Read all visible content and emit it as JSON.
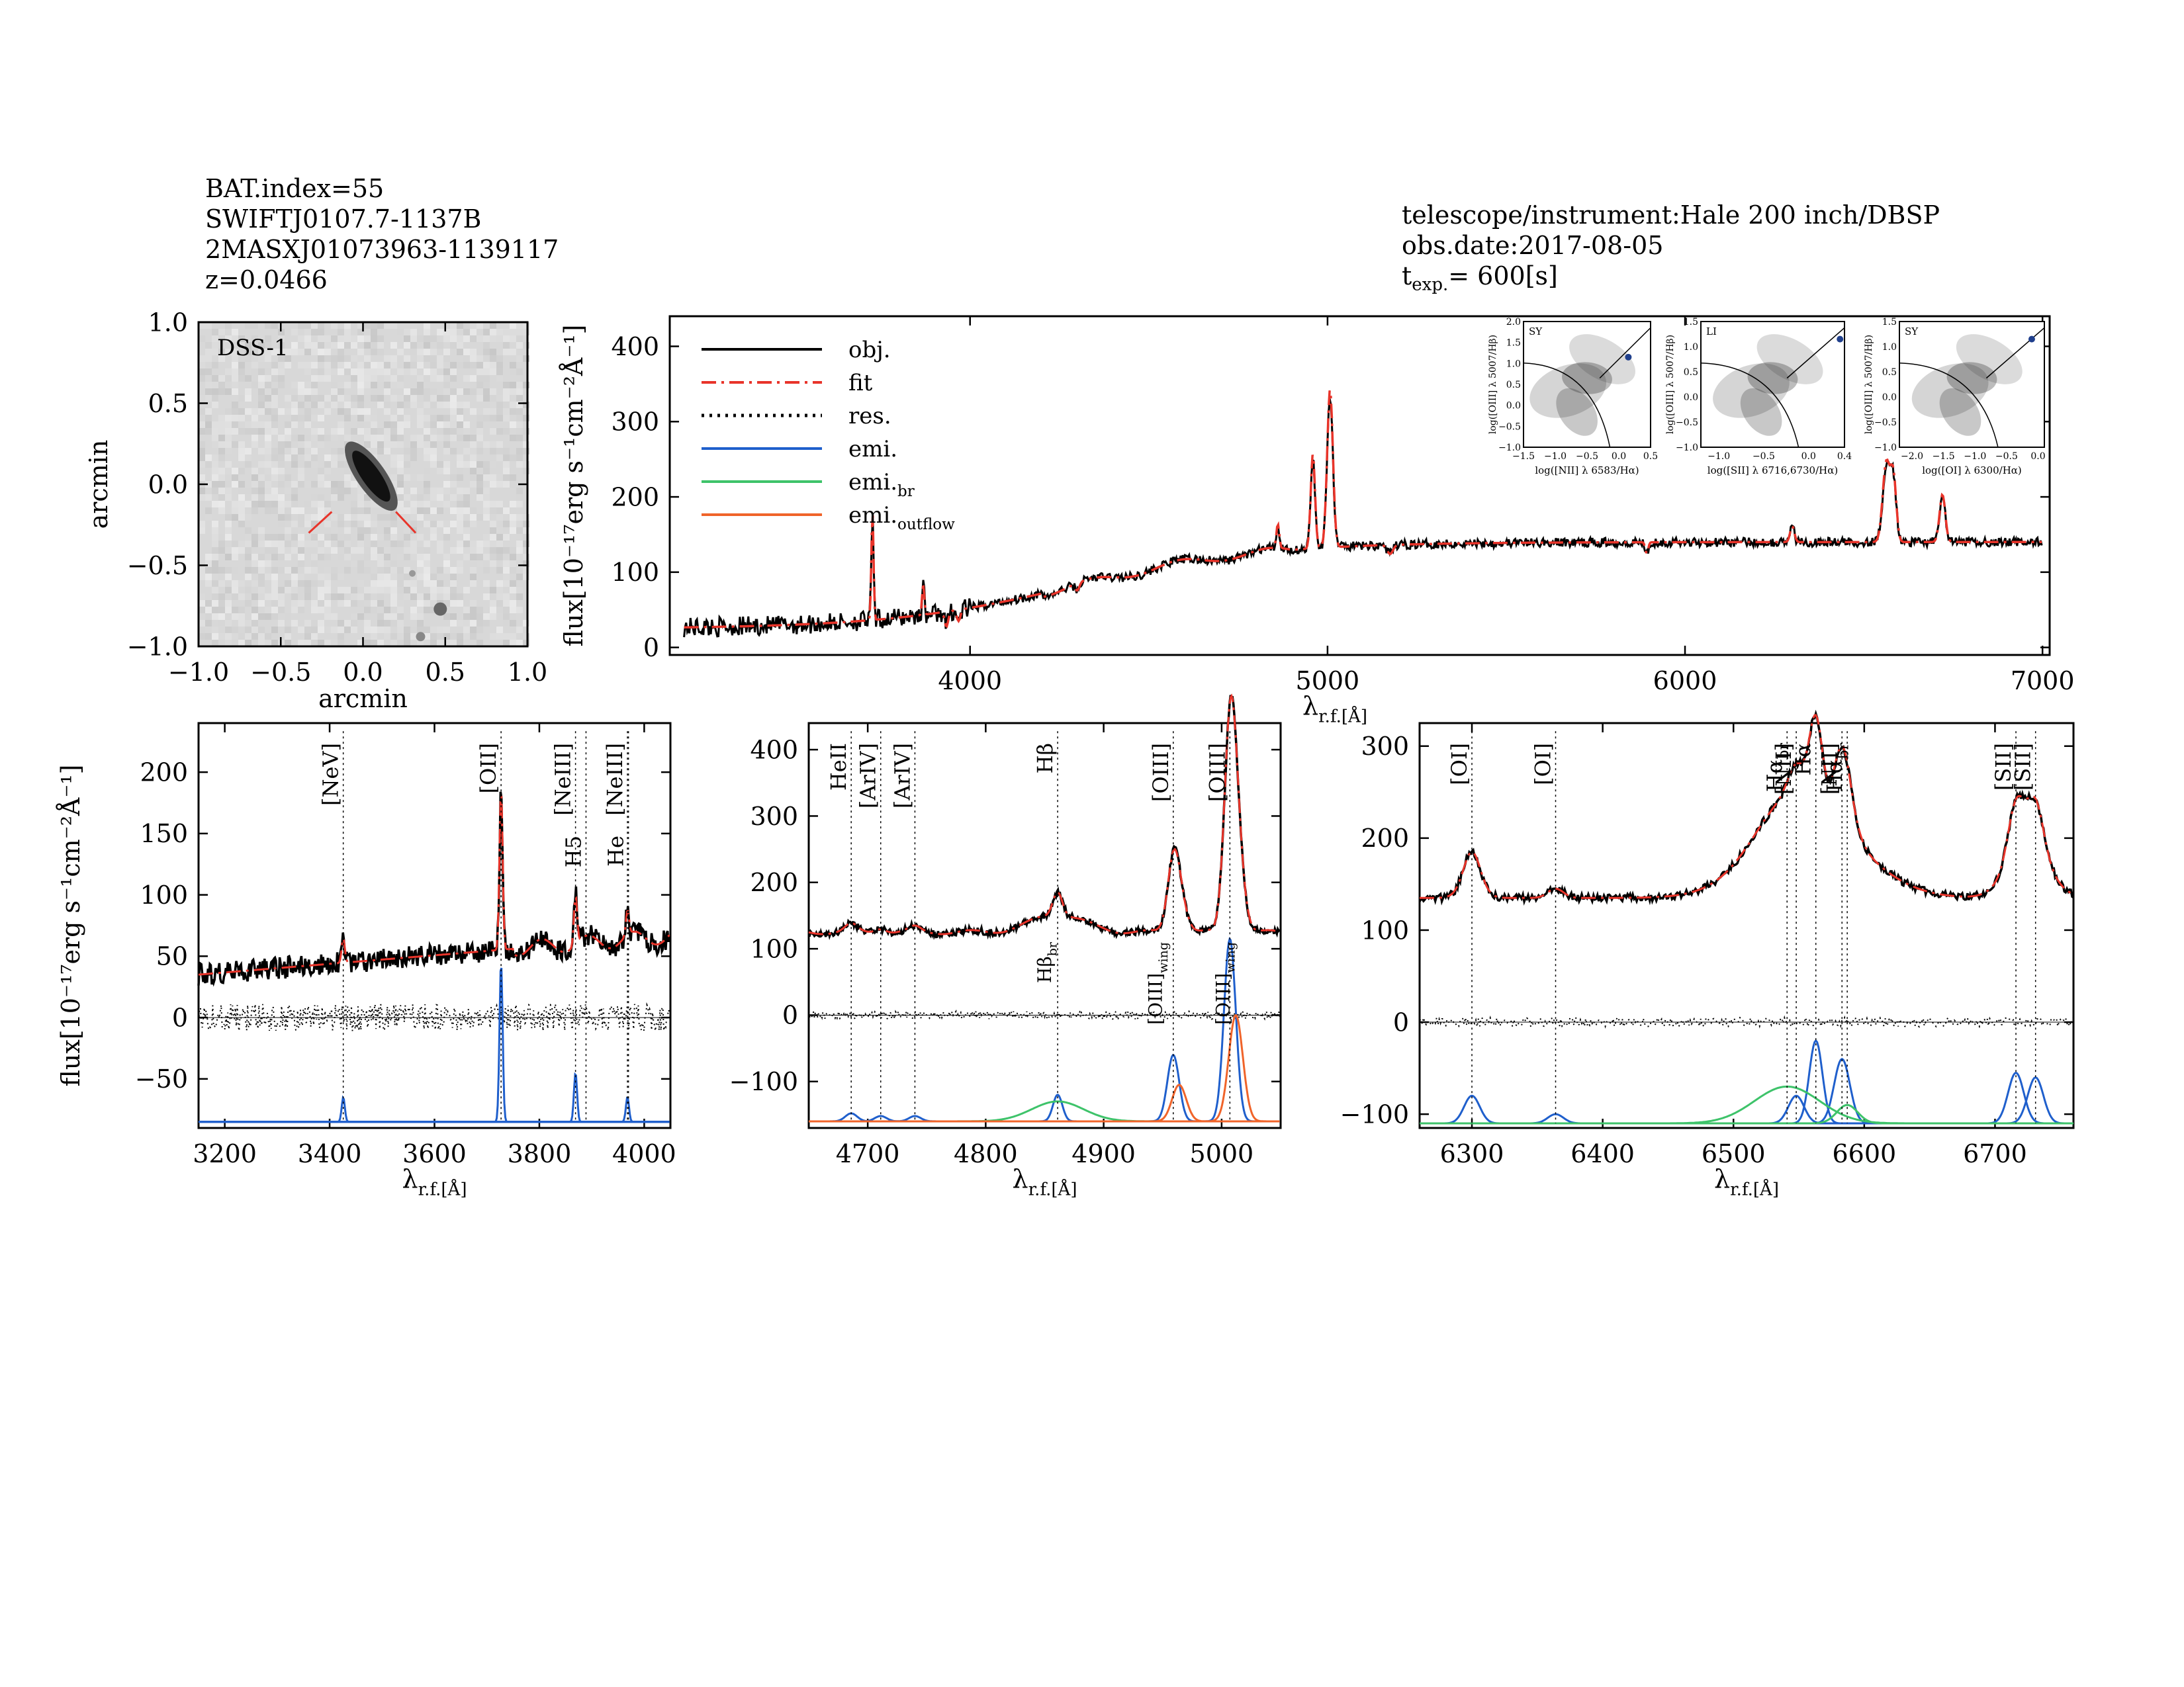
{
  "header_left": {
    "bat_index": "BAT.index=55",
    "swift_name": "SWIFTJ0107.7-1137B",
    "counterpart": "2MASXJ01073963-1139117",
    "redshift": "z=0.0466"
  },
  "header_right": {
    "telescope": "telescope/instrument:Hale 200 inch/DBSP",
    "obs_date": "obs.date:2017-08-05",
    "texp_label": "t",
    "texp_sub": "exp.",
    "texp_value": "= 600[s]"
  },
  "labels": {
    "arcmin": "arcmin",
    "flux_axis": "flux[10⁻¹⁷erg s⁻¹cm⁻²Å⁻¹]",
    "lambda_rf": "λ",
    "lambda_sub": "r.f.",
    "lambda_unit": "[Å]"
  },
  "colors": {
    "obj": "#000000",
    "fit": "#e8342a",
    "res": "#000000",
    "emi": "#1f5fcc",
    "emi_br": "#3ec36a",
    "emi_outflow": "#f0642a",
    "image_bg": "#d8d8d8"
  },
  "chart_data": [
    {
      "type": "image",
      "name": "dss-cutout",
      "title": "DSS-1",
      "xlabel": "arcmin",
      "ylabel": "arcmin",
      "xlim": [
        -1.0,
        1.0
      ],
      "ylim": [
        -1.0,
        1.0
      ],
      "xticks": [
        -1.0,
        -0.5,
        0.0,
        0.5,
        1.0
      ],
      "yticks": [
        -1.0,
        -0.5,
        0.0,
        0.5,
        1.0
      ],
      "tick_labels": [
        "−1.0",
        "−0.5",
        "0.0",
        "0.5",
        "1.0"
      ]
    },
    {
      "type": "line",
      "name": "full-spectrum",
      "xlabel": "λr.f.[Å]",
      "ylabel": "flux[10⁻¹⁷erg s⁻¹cm⁻²Å⁻¹]",
      "xlim": [
        3160,
        7020
      ],
      "ylim": [
        -10,
        440
      ],
      "xticks": [
        4000,
        5000,
        6000,
        7000
      ],
      "yticks": [
        0,
        100,
        200,
        300,
        400
      ],
      "legend": [
        {
          "label": "obj.",
          "style": "solid",
          "color": "#000000"
        },
        {
          "label": "fit",
          "style": "dashdot",
          "color": "#e8342a"
        },
        {
          "label": "res.",
          "style": "dotted",
          "color": "#000000"
        },
        {
          "label": "emi.",
          "style": "solid",
          "color": "#1f5fcc"
        },
        {
          "label": "emi.",
          "sub": "br",
          "style": "solid",
          "color": "#3ec36a"
        },
        {
          "label": "emi.",
          "sub": "outflow",
          "style": "solid",
          "color": "#f0642a"
        }
      ],
      "lines": [
        {
          "x": 3727,
          "amp": 140,
          "w": 3
        },
        {
          "x": 3869,
          "amp": 40,
          "w": 3
        },
        {
          "x": 4861,
          "amp": 30,
          "w": 4
        },
        {
          "x": 4959,
          "amp": 120,
          "w": 6
        },
        {
          "x": 5007,
          "amp": 200,
          "w": 8
        },
        {
          "x": 6300,
          "amp": 20,
          "w": 6
        },
        {
          "x": 6563,
          "amp": 100,
          "w": 10
        },
        {
          "x": 6583,
          "amp": 80,
          "w": 8
        },
        {
          "x": 6720,
          "amp": 60,
          "w": 8
        }
      ]
    },
    {
      "type": "scatter",
      "name": "bpt-nii",
      "label": "SY",
      "xlabel": "log([NII] λ 6583/Hα)",
      "ylabel": "log([OIII] λ 5007/Hβ)",
      "xlim": [
        -1.5,
        0.5
      ],
      "ylim": [
        -1.0,
        2.0
      ],
      "xticks": [
        -1.5,
        -1.0,
        -0.5,
        0.0,
        0.5
      ],
      "xtick_labels": [
        "−1.5",
        "−1.0",
        "−0.5",
        "0.0",
        "0.5"
      ],
      "yticks": [
        -1.0,
        -0.5,
        0.0,
        0.5,
        1.0,
        1.5,
        2.0
      ],
      "ytick_labels": [
        "−1.0",
        "−0.5",
        "0.0",
        "0.5",
        "1.0",
        "1.5",
        "2.0"
      ],
      "point": {
        "x": 0.15,
        "y": 1.15
      }
    },
    {
      "type": "scatter",
      "name": "bpt-sii",
      "label": "LI",
      "xlabel": "log([SII] λ 6716,6730/Hα)",
      "ylabel": "log([OIII] λ 5007/Hβ)",
      "xlim": [
        -1.2,
        0.4
      ],
      "ylim": [
        -1.0,
        1.5
      ],
      "xticks": [
        -1.0,
        -0.5,
        0.0,
        0.4
      ],
      "xtick_labels": [
        "−1.0",
        "−0.5",
        "0.0",
        "0.4"
      ],
      "yticks": [
        -1.0,
        -0.5,
        0.0,
        0.5,
        1.0,
        1.5
      ],
      "ytick_labels": [
        "−1.0",
        "−0.5",
        "0.0",
        "0.5",
        "1.0",
        "1.5"
      ],
      "point": {
        "x": 0.35,
        "y": 1.15
      }
    },
    {
      "type": "scatter",
      "name": "bpt-oi",
      "label": "SY",
      "xlabel": "log([OI] λ 6300/Hα)",
      "ylabel": "log([OIII] λ 5007/Hβ)",
      "xlim": [
        -2.2,
        0.1
      ],
      "ylim": [
        -1.0,
        1.5
      ],
      "xticks": [
        -2.0,
        -1.5,
        -1.0,
        -0.5,
        0.0
      ],
      "xtick_labels": [
        "−2.0",
        "−1.5",
        "−1.0",
        "−0.5",
        "0.0"
      ],
      "yticks": [
        -1.0,
        -0.5,
        0.0,
        0.5,
        1.0,
        1.5
      ],
      "ytick_labels": [
        "−1.0",
        "−0.5",
        "0.0",
        "0.5",
        "1.0",
        "1.5"
      ],
      "point": {
        "x": -0.1,
        "y": 1.15
      }
    },
    {
      "type": "line",
      "name": "zoom-3200-4050",
      "xlabel": "λr.f.[Å]",
      "ylabel": "flux[10⁻¹⁷erg s⁻¹cm⁻²Å⁻¹]",
      "xlim": [
        3150,
        4050
      ],
      "ylim": [
        -90,
        240
      ],
      "xticks": [
        3200,
        3400,
        3600,
        3800,
        4000
      ],
      "yticks": [
        -50,
        0,
        50,
        100,
        150,
        200
      ],
      "ytick_labels": [
        "−50",
        "0",
        "50",
        "100",
        "150",
        "200"
      ],
      "markers": [
        {
          "label": "[NeV]",
          "x": 3426,
          "color": "#000000"
        },
        {
          "label": "[OII]",
          "x": 3727,
          "color": "#000000"
        },
        {
          "label": "[NeIII]",
          "x": 3869,
          "color": "#000000"
        },
        {
          "label": "H5",
          "x": 3889,
          "color": "#e8342a"
        },
        {
          "label": "[NeIII]",
          "x": 3968,
          "color": "#000000"
        },
        {
          "label": "He",
          "x": 3970,
          "color": "#e8342a"
        }
      ],
      "emission": [
        {
          "x": 3426,
          "amp": 20,
          "w": 3
        },
        {
          "x": 3727,
          "amp": 130,
          "w": 3
        },
        {
          "x": 3869,
          "amp": 40,
          "w": 3
        },
        {
          "x": 3968,
          "amp": 20,
          "w": 3
        }
      ]
    },
    {
      "type": "line",
      "name": "zoom-4650-5050",
      "xlabel": "λr.f.[Å]",
      "ylabel": "",
      "xlim": [
        4650,
        5050
      ],
      "ylim": [
        -170,
        440
      ],
      "xticks": [
        4700,
        4800,
        4900,
        5000
      ],
      "yticks": [
        -100,
        0,
        100,
        200,
        300,
        400
      ],
      "ytick_labels": [
        "−100",
        "0",
        "100",
        "200",
        "300",
        "400"
      ],
      "markers": [
        {
          "label": "HeII",
          "x": 4686,
          "color": "#000000"
        },
        {
          "label": "[ArIV]",
          "x": 4711,
          "color": "#e8342a"
        },
        {
          "label": "[ArIV]",
          "x": 4740,
          "color": "#e8342a"
        },
        {
          "label": "Hβ",
          "x": 4861,
          "color": "#000000"
        },
        {
          "label": "[OIII]",
          "x": 4959,
          "color": "#000000"
        },
        {
          "label": "[OIII]",
          "x": 5007,
          "color": "#000000"
        }
      ],
      "inner_labels": [
        {
          "text": "Hβ",
          "sub": "br",
          "x": 4861
        },
        {
          "text": "[OIII]",
          "sub": "wing",
          "x": 4955
        },
        {
          "text": "[OIII]",
          "sub": "wing",
          "x": 5012
        }
      ],
      "emission": [
        {
          "x": 4686,
          "amp": 12,
          "w": 5,
          "kind": "emi"
        },
        {
          "x": 4711,
          "amp": 8,
          "w": 5,
          "kind": "emi"
        },
        {
          "x": 4740,
          "amp": 8,
          "w": 5,
          "kind": "emi"
        },
        {
          "x": 4861,
          "amp": 40,
          "w": 4,
          "kind": "emi"
        },
        {
          "x": 4861,
          "amp": 30,
          "w": 22,
          "kind": "emi_br"
        },
        {
          "x": 4959,
          "amp": 100,
          "w": 5,
          "kind": "emi"
        },
        {
          "x": 5007,
          "amp": 275,
          "w": 5,
          "kind": "emi"
        },
        {
          "x": 4964,
          "amp": 55,
          "w": 6,
          "kind": "emi_outflow"
        },
        {
          "x": 5012,
          "amp": 160,
          "w": 6,
          "kind": "emi_outflow"
        }
      ]
    },
    {
      "type": "line",
      "name": "zoom-6260-6760",
      "xlabel": "λr.f.[Å]",
      "ylabel": "",
      "xlim": [
        6260,
        6760
      ],
      "ylim": [
        -115,
        325
      ],
      "xticks": [
        6300,
        6400,
        6500,
        6600,
        6700
      ],
      "yticks": [
        -100,
        0,
        100,
        200,
        300
      ],
      "ytick_labels": [
        "−100",
        "0",
        "100",
        "200",
        "300"
      ],
      "markers": [
        {
          "label": "[OI]",
          "x": 6300,
          "color": "#000000"
        },
        {
          "label": "[OI]",
          "x": 6364,
          "color": "#000000"
        },
        {
          "label": "Hα",
          "sub": "br",
          "x": 6541,
          "color": "#000000"
        },
        {
          "label": "[NII]",
          "x": 6548,
          "color": "#000000"
        },
        {
          "label": "Hα",
          "x": 6563,
          "color": "#000000"
        },
        {
          "label": "[NII]",
          "x": 6583,
          "color": "#000000"
        },
        {
          "label": "Hα",
          "sub": "br",
          "x": 6587,
          "color": "#000000"
        },
        {
          "label": "[SII]",
          "x": 6716,
          "color": "#000000"
        },
        {
          "label": "[SII]",
          "x": 6731,
          "color": "#000000"
        }
      ],
      "emission": [
        {
          "x": 6300,
          "amp": 30,
          "w": 6,
          "kind": "emi"
        },
        {
          "x": 6364,
          "amp": 10,
          "w": 6,
          "kind": "emi"
        },
        {
          "x": 6548,
          "amp": 30,
          "w": 6,
          "kind": "emi"
        },
        {
          "x": 6563,
          "amp": 90,
          "w": 5,
          "kind": "emi"
        },
        {
          "x": 6583,
          "amp": 70,
          "w": 6,
          "kind": "emi"
        },
        {
          "x": 6541,
          "amp": 40,
          "w": 25,
          "kind": "emi_br"
        },
        {
          "x": 6587,
          "amp": 20,
          "w": 8,
          "kind": "emi_br"
        },
        {
          "x": 6716,
          "amp": 55,
          "w": 6,
          "kind": "emi"
        },
        {
          "x": 6731,
          "amp": 50,
          "w": 6,
          "kind": "emi"
        }
      ]
    }
  ]
}
